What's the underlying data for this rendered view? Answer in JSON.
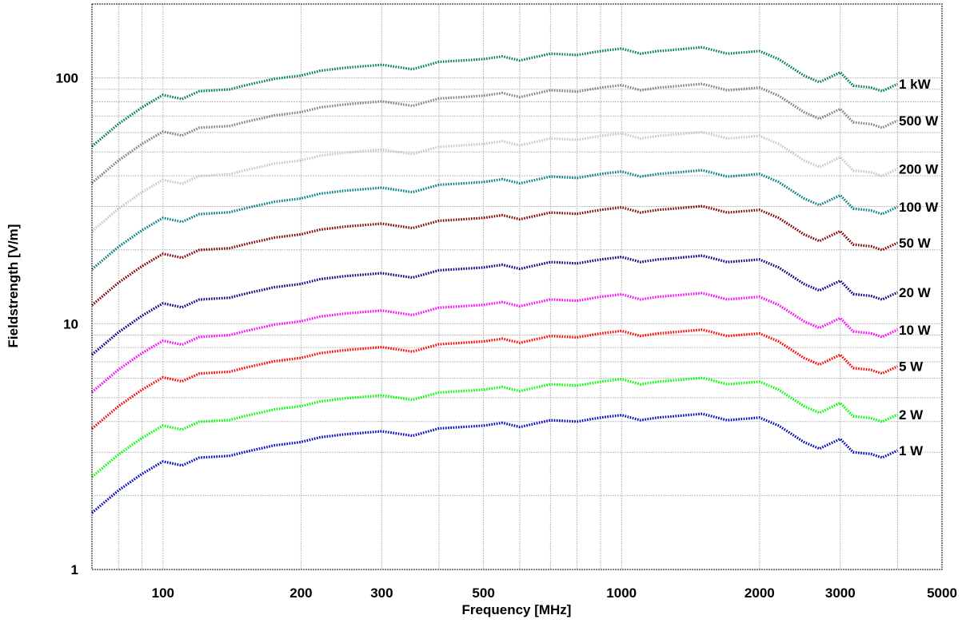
{
  "chart_data": {
    "type": "line",
    "title": "",
    "xlabel": "Frequency [MHz]",
    "ylabel": "Fieldstrength [V/m]",
    "x_scale": "log",
    "y_scale": "log",
    "xlim": [
      70,
      5000
    ],
    "ylim": [
      1,
      200
    ],
    "grid": true,
    "x_ticks": [
      {
        "value": 100,
        "label": "100"
      },
      {
        "value": 200,
        "label": "200"
      },
      {
        "value": 300,
        "label": "300"
      },
      {
        "value": 500,
        "label": "500"
      },
      {
        "value": 1000,
        "label": "1000"
      },
      {
        "value": 2000,
        "label": "2000"
      },
      {
        "value": 3000,
        "label": "3000"
      },
      {
        "value": 5000,
        "label": "5000"
      }
    ],
    "y_ticks": [
      {
        "value": 1,
        "label": "1"
      },
      {
        "value": 10,
        "label": "10"
      },
      {
        "value": 100,
        "label": "100"
      }
    ],
    "x": [
      70,
      80,
      90,
      100,
      110,
      120,
      140,
      150,
      175,
      200,
      220,
      250,
      300,
      350,
      400,
      450,
      500,
      550,
      600,
      700,
      800,
      900,
      1000,
      1100,
      1200,
      1300,
      1500,
      1700,
      2000,
      2200,
      2500,
      2700,
      3000,
      3200,
      3500,
      3700,
      4000
    ],
    "base_shape": [
      1.7,
      2.1,
      2.45,
      2.75,
      2.65,
      2.85,
      2.9,
      3.0,
      3.2,
      3.3,
      3.45,
      3.55,
      3.65,
      3.5,
      3.75,
      3.8,
      3.85,
      3.95,
      3.8,
      4.05,
      4.0,
      4.15,
      4.25,
      4.05,
      4.15,
      4.2,
      4.3,
      4.05,
      4.15,
      3.85,
      3.3,
      3.1,
      3.4,
      3.0,
      2.95,
      2.85,
      3.05
    ],
    "series": [
      {
        "name": "1 kW",
        "factor": 31.0,
        "color": "#008050"
      },
      {
        "name": "500 W",
        "factor": 22.0,
        "color": "#808080"
      },
      {
        "name": "200 W",
        "factor": 14.0,
        "color": "#c8c8c8"
      },
      {
        "name": "100 W",
        "factor": 9.8,
        "color": "#008080"
      },
      {
        "name": "50 W",
        "factor": 7.0,
        "color": "#800000"
      },
      {
        "name": "20 W",
        "factor": 4.4,
        "color": "#000080"
      },
      {
        "name": "10 W",
        "factor": 3.1,
        "color": "#ff00ff"
      },
      {
        "name": "5 W",
        "factor": 2.2,
        "color": "#ff0000"
      },
      {
        "name": "2 W",
        "factor": 1.4,
        "color": "#00ff00"
      },
      {
        "name": "1 W",
        "factor": 1.0,
        "color": "#0000c0"
      }
    ]
  }
}
